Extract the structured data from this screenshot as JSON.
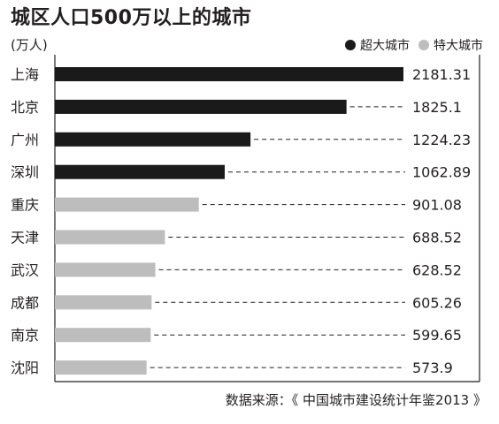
{
  "title": "城区人口500万以上的城市",
  "unit": "(万人)",
  "legend": [
    {
      "label": "超大城市",
      "color": "#1a1a1a"
    },
    {
      "label": "特大城市",
      "color": "#bdbdbd"
    }
  ],
  "source": "数据来源：《 中国城市建设统计年鉴2013 》",
  "chart_data": {
    "type": "bar",
    "orientation": "horizontal",
    "title": "城区人口500万以上的城市",
    "unit": "(万人)",
    "categories": [
      "上海",
      "北京",
      "广州",
      "深圳",
      "重庆",
      "天津",
      "武汉",
      "成都",
      "南京",
      "沈阳"
    ],
    "values": [
      2181.31,
      1825.1,
      1224.23,
      1062.89,
      901.08,
      688.52,
      628.52,
      605.26,
      599.65,
      573.9
    ],
    "value_labels": [
      "2181.31",
      "1825.1",
      "1224.23",
      "1062.89",
      "901.08",
      "688.52",
      "628.52",
      "605.26",
      "599.65",
      "573.9"
    ],
    "groups": [
      "超大城市",
      "超大城市",
      "超大城市",
      "超大城市",
      "特大城市",
      "特大城市",
      "特大城市",
      "特大城市",
      "特大城市",
      "特大城市"
    ],
    "colors": {
      "超大城市": "#1a1a1a",
      "特大城市": "#bdbdbd"
    },
    "xlim": [
      0,
      2181.31
    ],
    "grid": false,
    "legend_position": "top-right"
  }
}
